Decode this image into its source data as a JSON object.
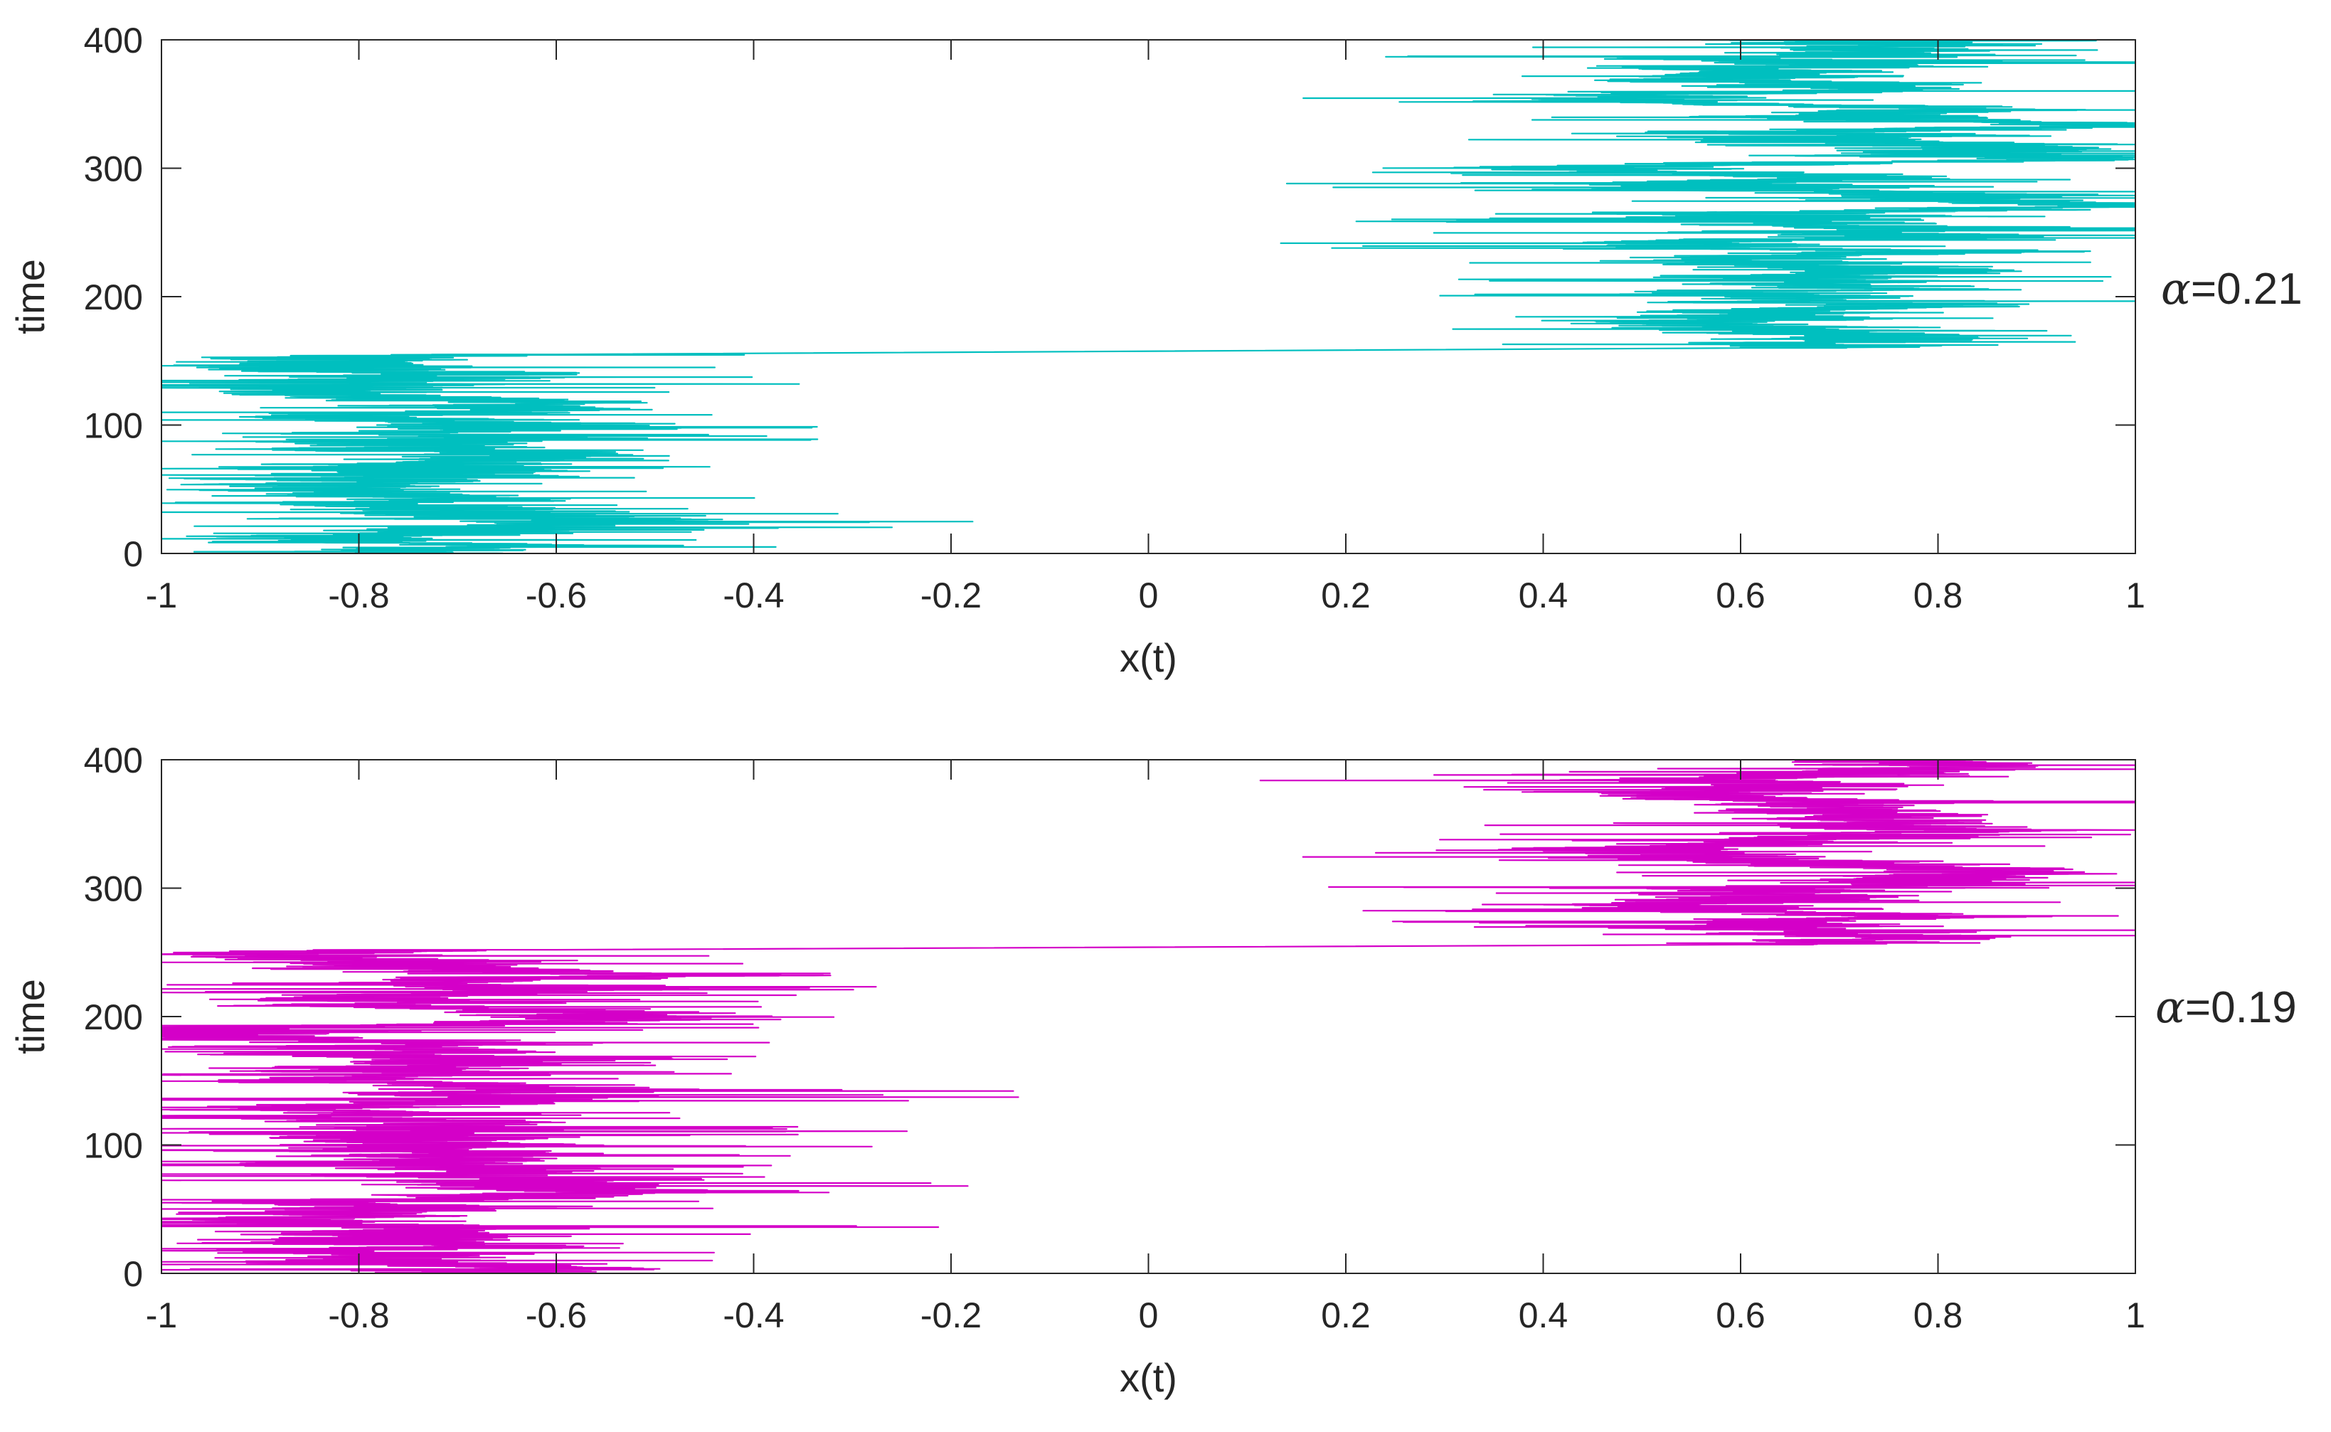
{
  "chart_data": [
    {
      "type": "line",
      "annotation": {
        "symbol": "α",
        "text": "=0.21"
      },
      "xlabel": "x(t)",
      "ylabel": "time",
      "xlim": [
        -1,
        1
      ],
      "ylim": [
        0,
        400
      ],
      "xticks": [
        -1,
        -0.8,
        -0.6,
        -0.4,
        -0.2,
        0,
        0.2,
        0.4,
        0.6,
        0.8,
        1
      ],
      "xtick_labels": [
        "-1",
        "-0.8",
        "-0.6",
        "-0.4",
        "-0.2",
        "0",
        "0.2",
        "0.4",
        "0.6",
        "0.8",
        "1"
      ],
      "yticks": [
        0,
        100,
        200,
        300,
        400
      ],
      "ytick_labels": [
        "0",
        "100",
        "200",
        "300",
        "400"
      ],
      "grid": false,
      "color": "#00bfbf",
      "series": [
        {
          "regimes": [
            {
              "t_start": 0,
              "t_end": 155,
              "center_x": -0.72,
              "spread": 0.09,
              "max_excursion": 0.45
            },
            {
              "t_start": 160,
              "t_end": 400,
              "center_x": 0.68,
              "spread": 0.09,
              "max_excursion": 0.42
            }
          ],
          "transition": {
            "t_from": 155,
            "t_to": 160,
            "x_from": -0.6,
            "x_to": 0.6
          }
        }
      ]
    },
    {
      "type": "line",
      "annotation": {
        "symbol": "α",
        "text": "=0.19"
      },
      "xlabel": "x(t)",
      "ylabel": "time",
      "xlim": [
        -1,
        1
      ],
      "ylim": [
        0,
        400
      ],
      "xticks": [
        -1,
        -0.8,
        -0.6,
        -0.4,
        -0.2,
        0,
        0.2,
        0.4,
        0.6,
        0.8,
        1
      ],
      "xtick_labels": [
        "-1",
        "-0.8",
        "-0.6",
        "-0.4",
        "-0.2",
        "0",
        "0.2",
        "0.4",
        "0.6",
        "0.8",
        "1"
      ],
      "yticks": [
        0,
        100,
        200,
        300,
        400
      ],
      "ytick_labels": [
        "0",
        "100",
        "200",
        "300",
        "400"
      ],
      "grid": false,
      "color": "#d400c8",
      "series": [
        {
          "regimes": [
            {
              "t_start": 0,
              "t_end": 252,
              "center_x": -0.72,
              "spread": 0.09,
              "max_excursion": 0.5
            },
            {
              "t_start": 256,
              "t_end": 400,
              "center_x": 0.68,
              "spread": 0.08,
              "max_excursion": 0.43
            }
          ],
          "transition": {
            "t_from": 252,
            "t_to": 256,
            "x_from": -0.6,
            "x_to": 0.6
          }
        }
      ]
    }
  ]
}
